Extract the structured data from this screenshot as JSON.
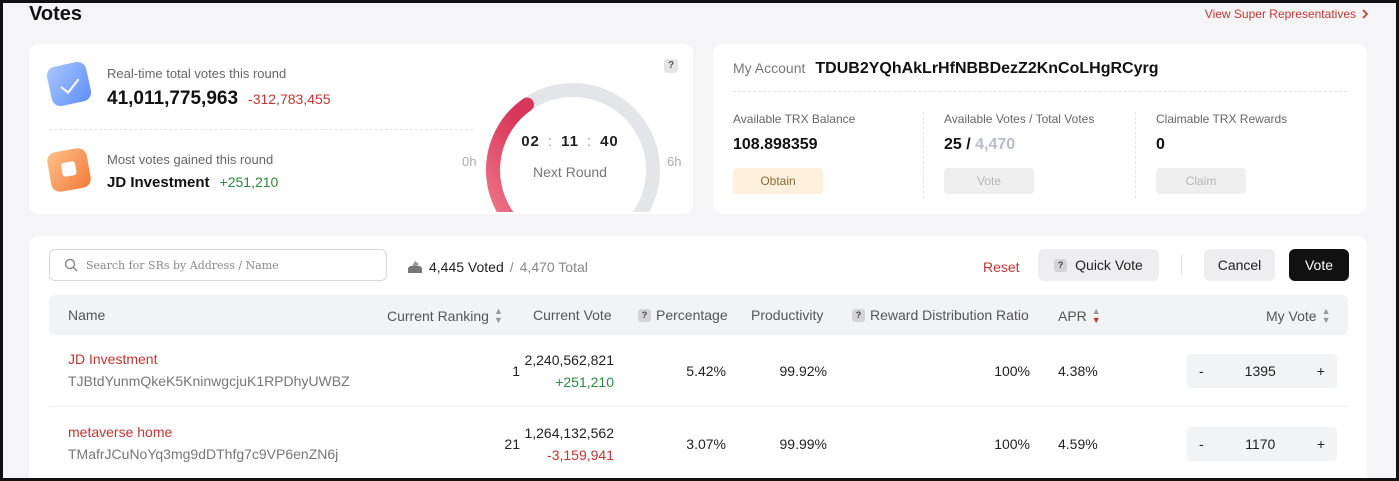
{
  "header": {
    "title": "Votes",
    "sr_link": "View Super Representatives"
  },
  "stats": {
    "total_label": "Real-time total votes this round",
    "total_value": "41,011,775,963",
    "total_change": "-312,783,455",
    "most_label": "Most votes gained this round",
    "most_name": "JD Investment",
    "most_change": "+251,210"
  },
  "gauge": {
    "hours": "02",
    "minutes": "11",
    "seconds": "40",
    "label": "Next Round",
    "start": "0h",
    "end": "6h",
    "help": "?",
    "progress": 0.37
  },
  "account": {
    "label": "My Account",
    "address": "TDUB2YQhAkLrHfNBBDezZ2KnCoLHgRCyrg",
    "balance_label": "Available TRX Balance",
    "balance_value": "108.898359",
    "obtain_button": "Obtain",
    "votes_label": "Available Votes / Total Votes",
    "votes_available": "25",
    "votes_sep": " / ",
    "votes_total": "4,470",
    "vote_button": "Vote",
    "rewards_label": "Claimable TRX Rewards",
    "rewards_value": "0",
    "claim_button": "Claim"
  },
  "toolbar": {
    "search_placeholder": "Search for SRs by Address / Name",
    "voted": "4,445 Voted",
    "voted_sep": " / ",
    "voted_total": "4,470 Total",
    "reset": "Reset",
    "quick_vote": "Quick Vote",
    "cancel": "Cancel",
    "vote": "Vote"
  },
  "table": {
    "columns": {
      "name": "Name",
      "ranking": "Current Ranking",
      "vote": "Current Vote",
      "percentage": "Percentage",
      "productivity": "Productivity",
      "reward": "Reward Distribution Ratio",
      "apr": "APR",
      "my_vote": "My Vote"
    },
    "rows": [
      {
        "name": "JD Investment",
        "address": "TJBtdYunmQkeK5KninwgcjuK1RPDhyUWBZ",
        "ranking": "1",
        "vote": "2,240,562,821",
        "vote_change": "+251,210",
        "percentage": "5.42%",
        "productivity": "99.92%",
        "reward": "100%",
        "apr": "4.38%",
        "my_vote": "1395"
      },
      {
        "name": "metaverse home",
        "address": "TMafrJCuNoYq3mg9dDThfg7c9VP6enZN6j",
        "ranking": "21",
        "vote": "1,264,132,562",
        "vote_change": "-3,159,941",
        "percentage": "3.07%",
        "productivity": "99.99%",
        "reward": "100%",
        "apr": "4.59%",
        "my_vote": "1170"
      }
    ]
  },
  "colors": {
    "accent_red": "#c23631",
    "positive_green": "#2b8a3e",
    "gauge_start": "#f08080",
    "gauge_end": "#d83a55"
  }
}
